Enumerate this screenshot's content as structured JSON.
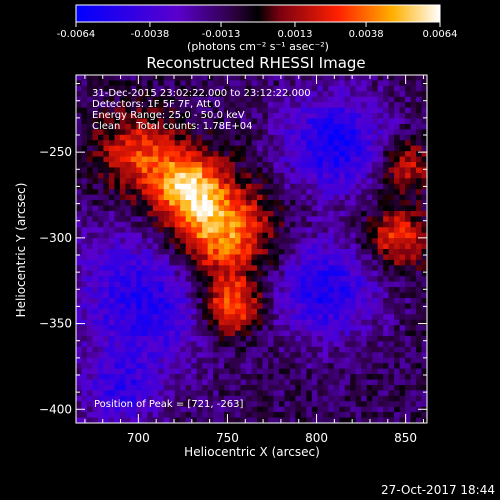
{
  "chart_data": {
    "type": "heatmap",
    "title": "Reconstructed RHESSI Image",
    "xlabel": "Heliocentric X (arcsec)",
    "ylabel": "Heliocentric Y (arcsec)",
    "xlim": [
      665,
      862
    ],
    "ylim": [
      -408,
      -205
    ],
    "x_ticks": [
      700,
      750,
      800,
      850
    ],
    "y_ticks": [
      -250,
      -300,
      -350,
      -400
    ],
    "colorbar": {
      "range": [
        -0.0064,
        0.0064
      ],
      "ticks": [
        "-0.0064",
        "-0.0038",
        "-0.0013",
        "0.0013",
        "0.0038",
        "0.0064"
      ],
      "unit_label": "(photons cm⁻² s⁻¹ asec⁻²)",
      "colormap": [
        "#0000ff",
        "#5a00cc",
        "#2a003a",
        "#000000",
        "#7a0010",
        "#ff2000",
        "#ffb000",
        "#ffffff"
      ]
    },
    "annotations": [
      "31-Dec-2015 23:02:22.000 to 23:12:22.000",
      "Detectors: 1F 5F 7F, Att 0",
      "Energy Range: 25.0 - 50.0 keV",
      "Clean     Total counts: 1.78E+04",
      "Position of Peak = [721, -263]"
    ],
    "peak": {
      "x": 721,
      "y": -263
    },
    "sources": [
      {
        "x": 745,
        "y": -297,
        "sigma": 20,
        "amp": 0.0062
      },
      {
        "x": 727,
        "y": -270,
        "sigma": 14,
        "amp": 0.0055
      },
      {
        "x": 752,
        "y": -340,
        "sigma": 12,
        "amp": 0.0052
      },
      {
        "x": 700,
        "y": -250,
        "sigma": 16,
        "amp": 0.004
      },
      {
        "x": 845,
        "y": -300,
        "sigma": 12,
        "amp": 0.0042
      },
      {
        "x": 850,
        "y": -258,
        "sigma": 10,
        "amp": 0.0036
      },
      {
        "x": 810,
        "y": -245,
        "sigma": 20,
        "amp": -0.0046
      },
      {
        "x": 705,
        "y": -335,
        "sigma": 28,
        "amp": -0.004
      },
      {
        "x": 805,
        "y": -330,
        "sigma": 20,
        "amp": -0.0042
      },
      {
        "x": 690,
        "y": -390,
        "sigma": 14,
        "amp": -0.003
      }
    ],
    "timestamp": "27-Oct-2017 18:44"
  }
}
